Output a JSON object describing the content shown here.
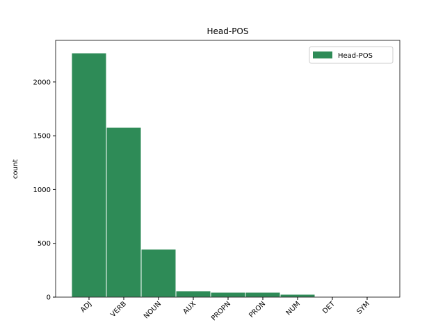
{
  "chart_data": {
    "type": "bar",
    "title": "Head-POS",
    "y_label": "count",
    "categories": [
      "ADJ",
      "VERB",
      "NOUN",
      "AUX",
      "PROPN",
      "PRON",
      "NUM",
      "DET",
      "SYM"
    ],
    "series": [
      {
        "name": "Head-POS",
        "color": "#2e8b57",
        "values": [
          2270,
          1578,
          446,
          58,
          45,
          45,
          26,
          3,
          1
        ]
      }
    ],
    "ylim": [
      0,
      2387
    ],
    "yticks": [
      0,
      500,
      1000,
      1500,
      2000
    ],
    "legend": "upper right"
  }
}
